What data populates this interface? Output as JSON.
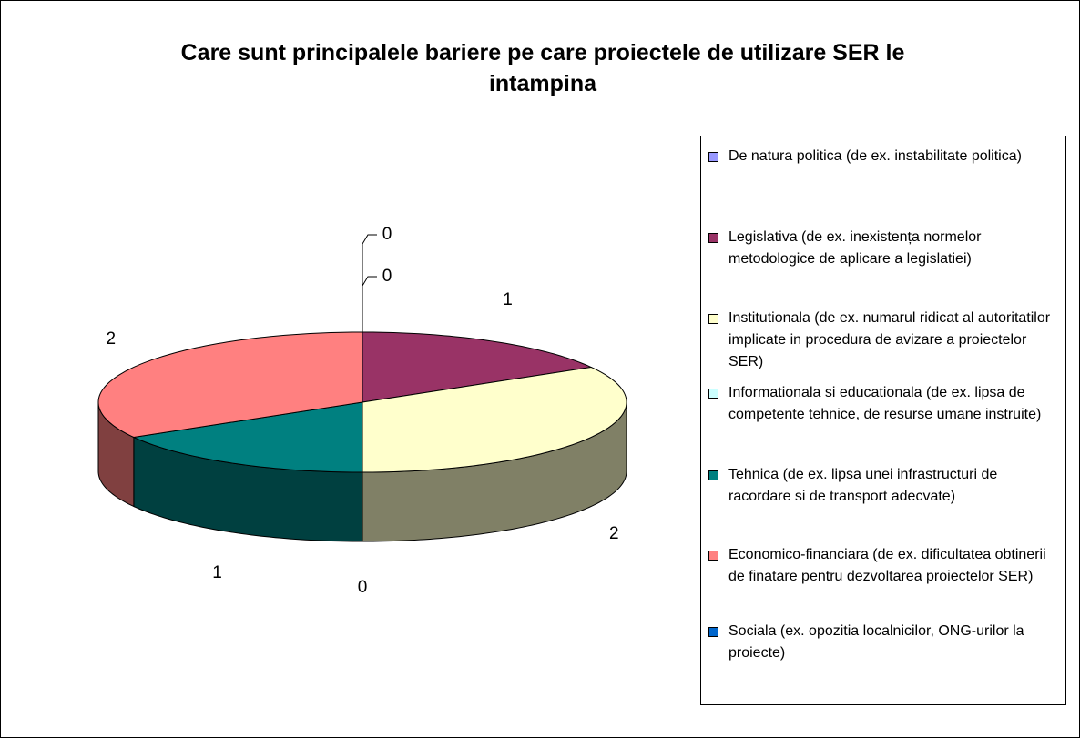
{
  "chart_data": {
    "type": "pie",
    "title": "Care sunt principalele bariere pe care proiectele de utilizare SER le intampina",
    "categories": [
      "De natura politica (de ex. instabilitate politica)",
      "Legislativa (de ex. inexistența normelor metodologice de aplicare a legislatiei)",
      "Institutionala (de ex. numarul ridicat al autoritatilor implicate in procedura de avizare a proiectelor SER)",
      "Informationala si educationala (de ex. lipsa de competente tehnice, de resurse umane instruite)",
      "Tehnica (de ex. lipsa unei infrastructuri de racordare si de transport adecvate)",
      "Economico-financiara (de ex. dificultatea obtinerii de finatare pentru dezvoltarea proiectelor SER)",
      " Sociala (ex. opozitia localnicilor, ONG-urilor la proiecte)"
    ],
    "values": [
      0,
      1,
      2,
      0,
      1,
      2,
      0
    ],
    "colors": [
      "#9999ff",
      "#993366",
      "#ffffcc",
      "#ccffff",
      "#008080",
      "#ff8080",
      "#0066cc"
    ],
    "legend": "right"
  }
}
